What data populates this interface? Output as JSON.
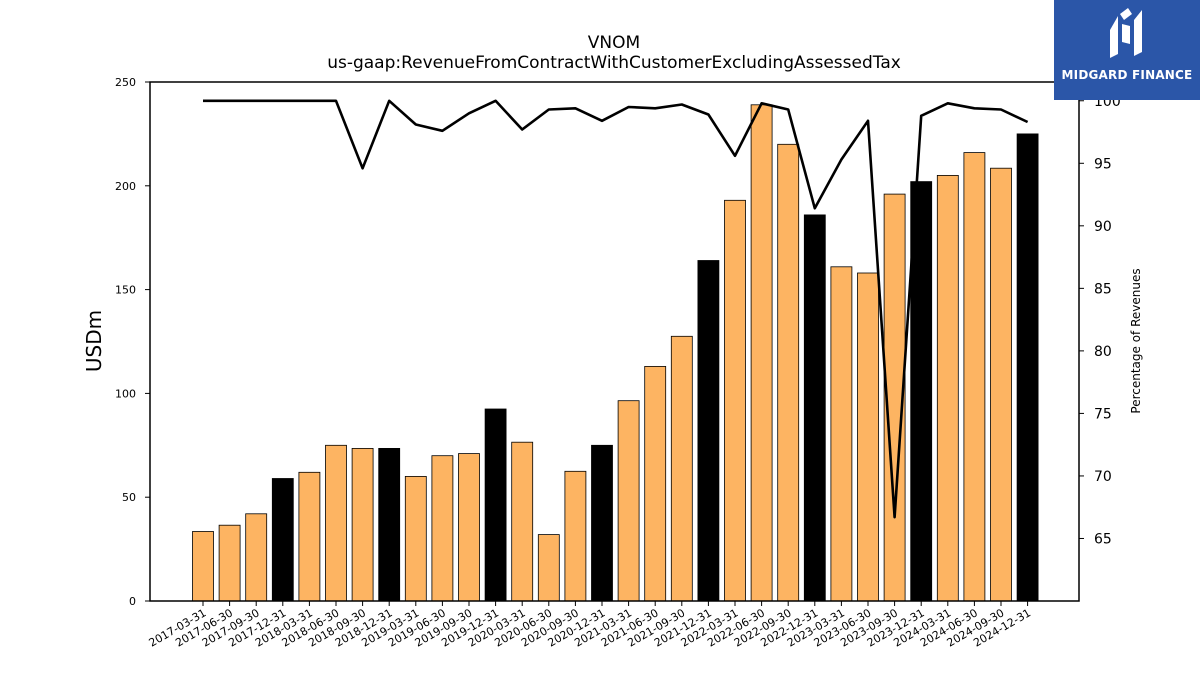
{
  "chart_data": {
    "type": "bar",
    "title": "VNOM",
    "subtitle": "us-gaap:RevenueFromContractWithCustomerExcludingAssessedTax",
    "ylabel": "USDm",
    "y2label": "Percentage of Revenues",
    "ylim": [
      0,
      250
    ],
    "y2lim": [
      60,
      101.5
    ],
    "yticks": [
      0,
      50,
      100,
      150,
      200,
      250
    ],
    "y2ticks": [
      65,
      70,
      75,
      80,
      85,
      90,
      95,
      100
    ],
    "categories": [
      "2017-03-31",
      "2017-06-30",
      "2017-09-30",
      "2017-12-31",
      "2018-03-31",
      "2018-06-30",
      "2018-09-30",
      "2018-12-31",
      "2019-03-31",
      "2019-06-30",
      "2019-09-30",
      "2019-12-31",
      "2020-03-31",
      "2020-06-30",
      "2020-09-30",
      "2020-12-31",
      "2021-03-31",
      "2021-06-30",
      "2021-09-30",
      "2021-12-31",
      "2022-03-31",
      "2022-06-30",
      "2022-09-30",
      "2022-12-31",
      "2023-03-31",
      "2023-06-30",
      "2023-09-30",
      "2023-12-31",
      "2024-03-31",
      "2024-06-30",
      "2024-09-30",
      "2024-12-31"
    ],
    "values": [
      33.5,
      36.5,
      42,
      59,
      62,
      75,
      73.5,
      73.5,
      60,
      70,
      71,
      92.5,
      76.5,
      32,
      62.5,
      75,
      96.5,
      113,
      127.5,
      164,
      193,
      239,
      220,
      186,
      161,
      158,
      196,
      202,
      205,
      216,
      208.5,
      225
    ],
    "annual_flags": [
      false,
      false,
      false,
      true,
      false,
      false,
      false,
      true,
      false,
      false,
      false,
      true,
      false,
      false,
      false,
      true,
      false,
      false,
      false,
      true,
      false,
      false,
      false,
      true,
      false,
      false,
      false,
      true,
      false,
      false,
      false,
      true
    ],
    "line_values": [
      100,
      100,
      100,
      100,
      100,
      100,
      94.6,
      100,
      98.1,
      97.6,
      99.0,
      100,
      97.7,
      99.3,
      99.4,
      98.4,
      99.5,
      99.4,
      99.7,
      98.9,
      95.6,
      99.8,
      99.3,
      91.4,
      95.3,
      98.4,
      66.7,
      98.8,
      99.8,
      99.4,
      99.3,
      98.3
    ],
    "colors": {
      "quarter_bar": "#fdb462",
      "annual_bar": "#000000",
      "line": "#000000",
      "edge": "#000000"
    },
    "grid": false,
    "legend": "none"
  },
  "brand": {
    "name": "MIDGARD FINANCE",
    "icon": "midgard-logo-icon"
  }
}
